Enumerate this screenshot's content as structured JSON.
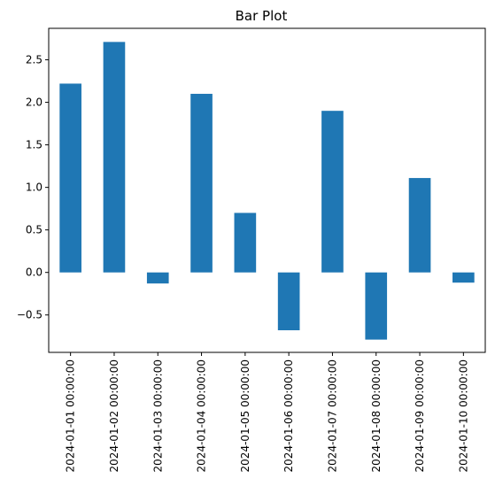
{
  "chart_data": {
    "type": "bar",
    "title": "Bar Plot",
    "xlabel": "",
    "ylabel": "",
    "categories": [
      "2024-01-01 00:00:00",
      "2024-01-02 00:00:00",
      "2024-01-03 00:00:00",
      "2024-01-04 00:00:00",
      "2024-01-05 00:00:00",
      "2024-01-06 00:00:00",
      "2024-01-07 00:00:00",
      "2024-01-08 00:00:00",
      "2024-01-09 00:00:00",
      "2024-01-10 00:00:00"
    ],
    "values": [
      2.22,
      2.71,
      -0.13,
      2.1,
      0.7,
      -0.68,
      1.9,
      -0.79,
      1.11,
      -0.12
    ],
    "ylim": [
      -0.94,
      2.87
    ],
    "yticks": [
      -0.5,
      0.0,
      0.5,
      1.0,
      1.5,
      2.0,
      2.5
    ],
    "ytick_labels": [
      "−0.5",
      "0.0",
      "0.5",
      "1.0",
      "1.5",
      "2.0",
      "2.5"
    ],
    "grid": false,
    "bar_color": "#1f77b4"
  }
}
